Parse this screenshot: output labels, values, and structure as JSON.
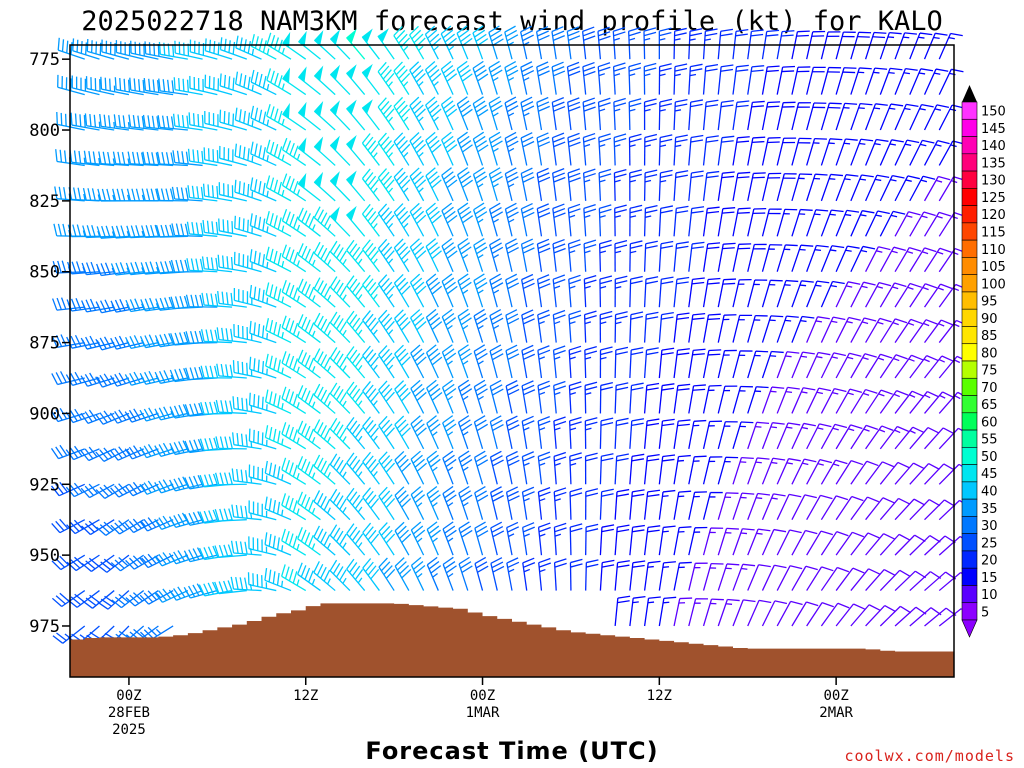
{
  "chart_data": {
    "type": "wind-barb time-height",
    "title": "2025022718 NAM3KM forecast wind profile (kt) for KALO",
    "xlabel": "Forecast Time (UTC)",
    "credit": "coolwx.com/models",
    "y_ticks": [
      "775",
      "800",
      "825",
      "850",
      "875",
      "900",
      "925",
      "950",
      "975"
    ],
    "y_tick_values": [
      775,
      800,
      825,
      850,
      875,
      900,
      925,
      950,
      975
    ],
    "ylim_hPa": [
      770,
      993
    ],
    "x_ticks": [
      {
        "hour": 6,
        "lines": [
          "00Z",
          "28FEB",
          "2025"
        ]
      },
      {
        "hour": 24,
        "lines": [
          "12Z"
        ]
      },
      {
        "hour": 42,
        "lines": [
          "00Z",
          "1MAR"
        ]
      },
      {
        "hour": 60,
        "lines": [
          "12Z"
        ]
      },
      {
        "hour": 78,
        "lines": [
          "00Z",
          "2MAR"
        ]
      }
    ],
    "xlim_hours": [
      0,
      90
    ],
    "time_step_hours": 1.5,
    "level_step_hPa": 12.5,
    "colorbar": {
      "labels": [
        "150",
        "145",
        "140",
        "135",
        "130",
        "125",
        "120",
        "115",
        "110",
        "105",
        "100",
        "95",
        "90",
        "85",
        "80",
        "75",
        "70",
        "65",
        "60",
        "55",
        "50",
        "45",
        "40",
        "35",
        "30",
        "25",
        "20",
        "15",
        "10",
        "5"
      ],
      "colors": [
        "#ff33ff",
        "#ff00e8",
        "#ff00b4",
        "#ff007a",
        "#ff0040",
        "#ff0000",
        "#ff1e00",
        "#ff4600",
        "#ff6e00",
        "#ff8c00",
        "#ffa000",
        "#ffbe00",
        "#ffd700",
        "#ffe600",
        "#ffff00",
        "#b4ff00",
        "#5aff00",
        "#32ff32",
        "#00ff5a",
        "#00ffa0",
        "#00ffd2",
        "#00e6f0",
        "#00c8ff",
        "#009bff",
        "#0078ff",
        "#0050ff",
        "#0028ff",
        "#0000ff",
        "#5a00ff",
        "#8c00ff"
      ]
    },
    "terrain_fill": "#a0522d",
    "surface_pressure_hPa": [
      {
        "hour": 0,
        "p": 980
      },
      {
        "hour": 3,
        "p": 979
      },
      {
        "hour": 6,
        "p": 979
      },
      {
        "hour": 9,
        "p": 979
      },
      {
        "hour": 12,
        "p": 978
      },
      {
        "hour": 15,
        "p": 976
      },
      {
        "hour": 18,
        "p": 974
      },
      {
        "hour": 21,
        "p": 971
      },
      {
        "hour": 24,
        "p": 969
      },
      {
        "hour": 25.5,
        "p": 967
      },
      {
        "hour": 33,
        "p": 967
      },
      {
        "hour": 40,
        "p": 969
      },
      {
        "hour": 42,
        "p": 971
      },
      {
        "hour": 45,
        "p": 973
      },
      {
        "hour": 48,
        "p": 975
      },
      {
        "hour": 51,
        "p": 977
      },
      {
        "hour": 54,
        "p": 978
      },
      {
        "hour": 57,
        "p": 979
      },
      {
        "hour": 60,
        "p": 980
      },
      {
        "hour": 63,
        "p": 981
      },
      {
        "hour": 66,
        "p": 982
      },
      {
        "hour": 69,
        "p": 983
      },
      {
        "hour": 72,
        "p": 983
      },
      {
        "hour": 75,
        "p": 983
      },
      {
        "hour": 78,
        "p": 983
      },
      {
        "hour": 81,
        "p": 983
      },
      {
        "hour": 84,
        "p": 984
      },
      {
        "hour": 90,
        "p": 984
      }
    ],
    "wind_key_times": [
      {
        "hour": 0,
        "upper_speed": 40,
        "upper_dir": 290,
        "lower_speed": 25,
        "lower_dir": 230
      },
      {
        "hour": 6,
        "upper_speed": 38,
        "upper_dir": 285,
        "lower_speed": 28,
        "lower_dir": 220
      },
      {
        "hour": 12,
        "upper_speed": 40,
        "upper_dir": 280,
        "lower_speed": 35,
        "lower_dir": 240
      },
      {
        "hour": 18,
        "upper_speed": 42,
        "upper_dir": 290,
        "lower_speed": 42,
        "lower_dir": 260
      },
      {
        "hour": 24,
        "upper_speed": 48,
        "upper_dir": 305,
        "lower_speed": 45,
        "lower_dir": 300
      },
      {
        "hour": 30,
        "upper_speed": 50,
        "upper_dir": 320,
        "lower_speed": 42,
        "lower_dir": 320
      },
      {
        "hour": 36,
        "upper_speed": 45,
        "upper_dir": 330,
        "lower_speed": 35,
        "lower_dir": 335
      },
      {
        "hour": 42,
        "upper_speed": 40,
        "upper_dir": 340,
        "lower_speed": 28,
        "lower_dir": 345
      },
      {
        "hour": 48,
        "upper_speed": 32,
        "upper_dir": 350,
        "lower_speed": 22,
        "lower_dir": 355
      },
      {
        "hour": 54,
        "upper_speed": 28,
        "upper_dir": 355,
        "lower_speed": 18,
        "lower_dir": 5
      },
      {
        "hour": 60,
        "upper_speed": 25,
        "upper_dir": 0,
        "lower_speed": 15,
        "lower_dir": 10
      },
      {
        "hour": 66,
        "upper_speed": 22,
        "upper_dir": 5,
        "lower_speed": 12,
        "lower_dir": 20
      },
      {
        "hour": 72,
        "upper_speed": 20,
        "upper_dir": 10,
        "lower_speed": 10,
        "lower_dir": 30
      },
      {
        "hour": 78,
        "upper_speed": 18,
        "upper_dir": 15,
        "lower_speed": 10,
        "lower_dir": 40
      },
      {
        "hour": 84,
        "upper_speed": 17,
        "upper_dir": 20,
        "lower_speed": 10,
        "lower_dir": 50
      },
      {
        "hour": 90,
        "upper_speed": 16,
        "upper_dir": 25,
        "lower_speed": 10,
        "lower_dir": 55
      }
    ]
  }
}
